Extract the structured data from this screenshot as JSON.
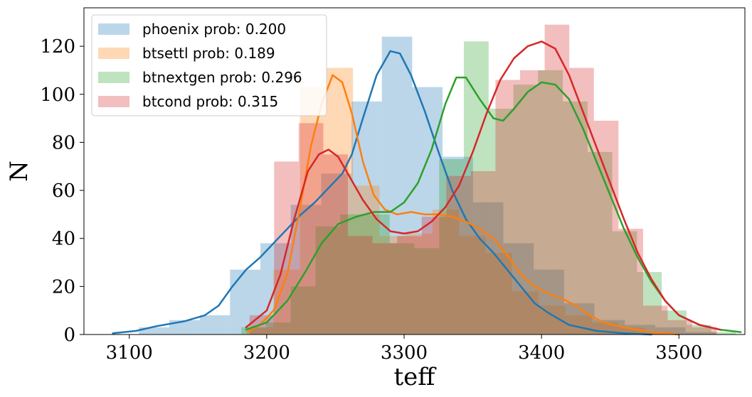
{
  "chart_data": {
    "type": "histogram",
    "xlabel": "teff",
    "ylabel": "N",
    "xlim": [
      3067,
      3548
    ],
    "ylim": [
      0,
      136
    ],
    "xticks": [
      3100,
      3200,
      3300,
      3400,
      3500
    ],
    "yticks": [
      0,
      20,
      40,
      60,
      80,
      100,
      120
    ],
    "grid": false,
    "legend_position": "top-left",
    "bar_alpha": 0.3,
    "series": [
      {
        "name": "phoenix prob: 0.200",
        "color": "#1f77b4",
        "bin_width": 22.1,
        "bins": [
          [
            3107.0,
            3
          ],
          [
            3129.1,
            6
          ],
          [
            3151.2,
            8
          ],
          [
            3173.3,
            27
          ],
          [
            3195.4,
            38
          ],
          [
            3217.5,
            54
          ],
          [
            3239.6,
            67
          ],
          [
            3261.7,
            97
          ],
          [
            3283.8,
            124
          ],
          [
            3305.9,
            103
          ],
          [
            3328.0,
            74
          ],
          [
            3350.1,
            55
          ],
          [
            3372.2,
            38
          ],
          [
            3394.3,
            27
          ],
          [
            3416.4,
            13
          ],
          [
            3438.5,
            6
          ],
          [
            3460.6,
            4
          ],
          [
            3482.7,
            3
          ],
          [
            3504.8,
            1
          ]
        ],
        "kde": [
          [
            3088,
            0.5
          ],
          [
            3105,
            1.5
          ],
          [
            3120,
            3.5
          ],
          [
            3140,
            5.5
          ],
          [
            3155,
            8
          ],
          [
            3165,
            12
          ],
          [
            3175,
            20
          ],
          [
            3185,
            27
          ],
          [
            3195,
            32
          ],
          [
            3205,
            38
          ],
          [
            3215,
            44
          ],
          [
            3225,
            50
          ],
          [
            3235,
            55
          ],
          [
            3245,
            61
          ],
          [
            3255,
            67
          ],
          [
            3262,
            75
          ],
          [
            3270,
            90
          ],
          [
            3280,
            108
          ],
          [
            3290,
            118
          ],
          [
            3297,
            117
          ],
          [
            3305,
            108
          ],
          [
            3315,
            93
          ],
          [
            3325,
            76
          ],
          [
            3335,
            60
          ],
          [
            3345,
            48
          ],
          [
            3355,
            40
          ],
          [
            3365,
            34
          ],
          [
            3375,
            27
          ],
          [
            3385,
            20
          ],
          [
            3395,
            13
          ],
          [
            3405,
            9
          ],
          [
            3420,
            4
          ],
          [
            3440,
            1.5
          ],
          [
            3460,
            0.5
          ],
          [
            3480,
            0
          ]
        ]
      },
      {
        "name": "btsettl prob: 0.189",
        "color": "#ff7f0e",
        "bin_width": 19.3,
        "bins": [
          [
            3185.6,
            3
          ],
          [
            3204.9,
            27
          ],
          [
            3224.2,
            103
          ],
          [
            3243.5,
            111
          ],
          [
            3262.8,
            62
          ],
          [
            3282.1,
            41
          ],
          [
            3301.4,
            42
          ],
          [
            3320.7,
            52
          ],
          [
            3340.0,
            41
          ],
          [
            3359.3,
            34
          ],
          [
            3378.6,
            18
          ],
          [
            3397.9,
            12
          ],
          [
            3417.2,
            8
          ],
          [
            3436.5,
            5
          ],
          [
            3455.8,
            3
          ],
          [
            3475.1,
            1
          ]
        ],
        "kde": [
          [
            3186,
            1
          ],
          [
            3195,
            4
          ],
          [
            3205,
            10
          ],
          [
            3215,
            25
          ],
          [
            3225,
            55
          ],
          [
            3232,
            78
          ],
          [
            3240,
            96
          ],
          [
            3248,
            108
          ],
          [
            3255,
            105
          ],
          [
            3262,
            92
          ],
          [
            3270,
            72
          ],
          [
            3278,
            58
          ],
          [
            3286,
            52
          ],
          [
            3295,
            50
          ],
          [
            3305,
            51
          ],
          [
            3315,
            50
          ],
          [
            3325,
            50
          ],
          [
            3335,
            49
          ],
          [
            3345,
            47
          ],
          [
            3355,
            44
          ],
          [
            3365,
            40
          ],
          [
            3375,
            33
          ],
          [
            3385,
            25
          ],
          [
            3395,
            20
          ],
          [
            3405,
            17
          ],
          [
            3415,
            15
          ],
          [
            3425,
            12
          ],
          [
            3435,
            8
          ],
          [
            3445,
            5
          ],
          [
            3460,
            3
          ],
          [
            3480,
            1
          ],
          [
            3500,
            0
          ]
        ]
      },
      {
        "name": "btnextgen prob: 0.296",
        "color": "#2ca02c",
        "bin_width": 18.0,
        "bins": [
          [
            3181.5,
            3
          ],
          [
            3199.5,
            5
          ],
          [
            3217.5,
            20
          ],
          [
            3235.5,
            45
          ],
          [
            3253.5,
            50
          ],
          [
            3271.5,
            50
          ],
          [
            3289.5,
            38
          ],
          [
            3307.5,
            36
          ],
          [
            3325.5,
            73
          ],
          [
            3343.5,
            122
          ],
          [
            3361.5,
            94
          ],
          [
            3379.5,
            104
          ],
          [
            3397.5,
            110
          ],
          [
            3415.5,
            97
          ],
          [
            3433.5,
            76
          ],
          [
            3451.5,
            43
          ],
          [
            3469.5,
            26
          ],
          [
            3487.5,
            10
          ],
          [
            3505.5,
            4
          ],
          [
            3523.5,
            1
          ]
        ],
        "kde": [
          [
            3185,
            2
          ],
          [
            3200,
            5
          ],
          [
            3215,
            14
          ],
          [
            3228,
            26
          ],
          [
            3240,
            38
          ],
          [
            3252,
            46
          ],
          [
            3265,
            49
          ],
          [
            3278,
            51
          ],
          [
            3290,
            51
          ],
          [
            3300,
            55
          ],
          [
            3310,
            63
          ],
          [
            3320,
            77
          ],
          [
            3330,
            96
          ],
          [
            3338,
            107
          ],
          [
            3345,
            107
          ],
          [
            3355,
            98
          ],
          [
            3365,
            90
          ],
          [
            3372,
            89
          ],
          [
            3380,
            94
          ],
          [
            3390,
            101
          ],
          [
            3400,
            105
          ],
          [
            3410,
            104
          ],
          [
            3420,
            98
          ],
          [
            3430,
            86
          ],
          [
            3440,
            72
          ],
          [
            3450,
            58
          ],
          [
            3460,
            44
          ],
          [
            3470,
            32
          ],
          [
            3480,
            22
          ],
          [
            3490,
            14
          ],
          [
            3500,
            8
          ],
          [
            3515,
            4
          ],
          [
            3530,
            2
          ],
          [
            3545,
            1
          ]
        ]
      },
      {
        "name": "btcond prob: 0.315",
        "color": "#d62728",
        "bin_width": 17.9,
        "bins": [
          [
            3187.5,
            8
          ],
          [
            3205.4,
            72
          ],
          [
            3223.3,
            88
          ],
          [
            3241.2,
            75
          ],
          [
            3259.1,
            41
          ],
          [
            3277.0,
            38
          ],
          [
            3294.9,
            41
          ],
          [
            3312.8,
            49
          ],
          [
            3330.7,
            66
          ],
          [
            3348.6,
            68
          ],
          [
            3366.5,
            106
          ],
          [
            3384.4,
            110
          ],
          [
            3402.3,
            129
          ],
          [
            3420.2,
            111
          ],
          [
            3438.1,
            89
          ],
          [
            3456.0,
            44
          ],
          [
            3473.9,
            12
          ],
          [
            3491.8,
            6
          ],
          [
            3509.7,
            3
          ]
        ],
        "kde": [
          [
            3185,
            3
          ],
          [
            3200,
            10
          ],
          [
            3210,
            25
          ],
          [
            3220,
            48
          ],
          [
            3230,
            68
          ],
          [
            3238,
            75
          ],
          [
            3245,
            77
          ],
          [
            3252,
            74
          ],
          [
            3260,
            66
          ],
          [
            3270,
            56
          ],
          [
            3280,
            48
          ],
          [
            3290,
            43
          ],
          [
            3300,
            42
          ],
          [
            3310,
            43
          ],
          [
            3320,
            47
          ],
          [
            3330,
            53
          ],
          [
            3340,
            62
          ],
          [
            3350,
            76
          ],
          [
            3360,
            92
          ],
          [
            3370,
            106
          ],
          [
            3380,
            115
          ],
          [
            3390,
            120
          ],
          [
            3400,
            122
          ],
          [
            3410,
            119
          ],
          [
            3420,
            108
          ],
          [
            3430,
            93
          ],
          [
            3440,
            78
          ],
          [
            3450,
            63
          ],
          [
            3460,
            48
          ],
          [
            3470,
            34
          ],
          [
            3480,
            23
          ],
          [
            3490,
            14
          ],
          [
            3500,
            8
          ],
          [
            3515,
            4
          ],
          [
            3530,
            2
          ]
        ]
      }
    ]
  }
}
